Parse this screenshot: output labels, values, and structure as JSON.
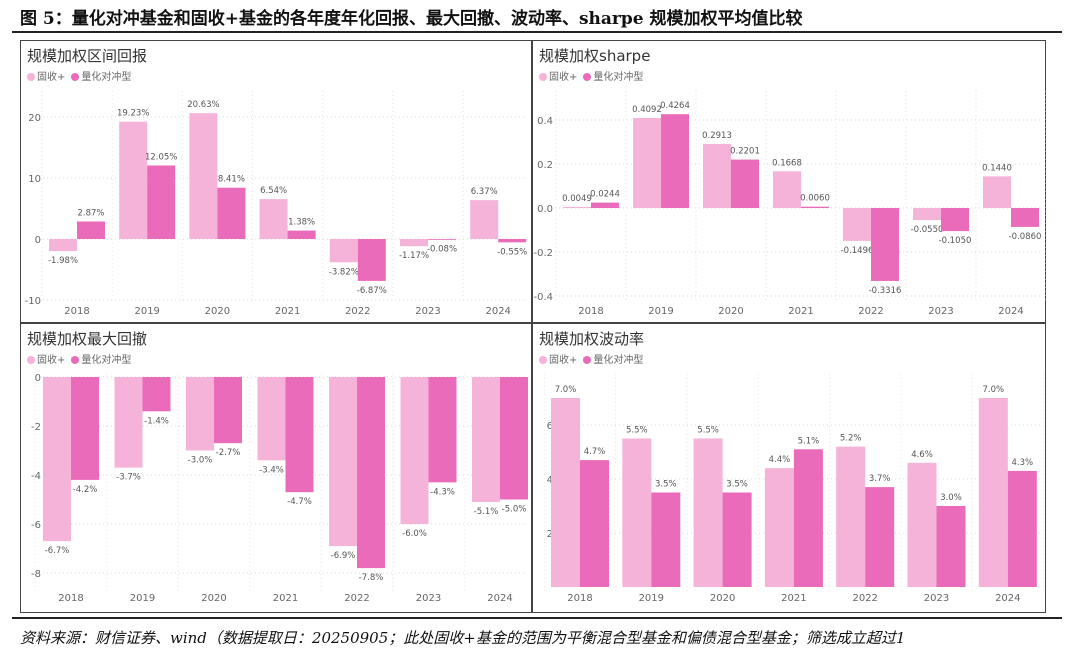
{
  "figure_title": "图 5：量化对冲基金和固收+基金的各年度年化回报、最大回撤、波动率、sharpe 规模加权平均值比较",
  "source": "资料来源：财信证券、wind（数据提取日：20250905；此处固收+基金的范围为平衡混合型基金和偏债混合型基金；筛选成立超过1",
  "colors": {
    "fixed_income_plus": "#f5b3d9",
    "quant_hedge": "#e96bb9"
  },
  "legend": [
    "固收+",
    "量化对冲型"
  ],
  "chart_data": [
    {
      "type": "bar",
      "title": "规模加权区间回报",
      "categories": [
        "2018",
        "2019",
        "2020",
        "2021",
        "2022",
        "2023",
        "2024"
      ],
      "yticks": [
        "20",
        "10",
        "0",
        "-10"
      ],
      "ytick_values": [
        20,
        10,
        0,
        -10
      ],
      "ylim": [
        -10,
        23
      ],
      "series": [
        {
          "name": "固收+",
          "values": [
            -1.98,
            19.23,
            20.63,
            6.54,
            -3.82,
            -1.17,
            6.37
          ],
          "labels": [
            "-1.98%",
            "19.23%",
            "20.63%",
            "6.54%",
            "-3.82%",
            "-1.17%",
            "6.37%"
          ]
        },
        {
          "name": "量化对冲型",
          "values": [
            2.87,
            12.05,
            8.41,
            1.38,
            -6.87,
            -0.08,
            -0.55
          ],
          "labels": [
            "2.87%",
            "12.05%",
            "8.41%",
            "1.38%",
            "-6.87%",
            "-0.08%",
            "-0.55%"
          ]
        }
      ]
    },
    {
      "type": "bar",
      "title": "规模加权sharpe",
      "categories": [
        "2018",
        "2019",
        "2020",
        "2021",
        "2022",
        "2023",
        "2024"
      ],
      "yticks": [
        "0.4",
        "0.2",
        "0.0",
        "-0.2",
        "-0.4"
      ],
      "ytick_values": [
        0.4,
        0.2,
        0,
        -0.2,
        -0.4
      ],
      "ylim": [
        -0.4,
        0.5
      ],
      "series": [
        {
          "name": "固收+",
          "values": [
            0.0049,
            0.4092,
            0.2913,
            0.1668,
            -0.1496,
            -0.055,
            0.144
          ],
          "labels": [
            "0.0049",
            "0.4092",
            "0.2913",
            "0.1668",
            "-0.1496",
            "-0.0550",
            "0.1440"
          ]
        },
        {
          "name": "量化对冲型",
          "values": [
            0.0244,
            0.4264,
            0.2201,
            0.006,
            -0.3316,
            -0.105,
            -0.086
          ],
          "labels": [
            "0.0244",
            "0.4264",
            "0.2201",
            "0.0060",
            "-0.3316",
            "-0.1050",
            "-0.0860"
          ]
        }
      ]
    },
    {
      "type": "bar",
      "title": "规模加权最大回撤",
      "categories": [
        "2018",
        "2019",
        "2020",
        "2021",
        "2022",
        "2023",
        "2024"
      ],
      "yticks": [
        "0",
        "-2",
        "-4",
        "-6",
        "-8"
      ],
      "ytick_values": [
        0,
        -2,
        -4,
        -6,
        -8
      ],
      "ylim": [
        -8.5,
        0
      ],
      "series": [
        {
          "name": "固收+",
          "values": [
            -6.7,
            -3.7,
            -3.0,
            -3.4,
            -6.9,
            -6.0,
            -5.1
          ],
          "labels": [
            "-6.7%",
            "-3.7%",
            "-3.0%",
            "-3.4%",
            "-6.9%",
            "-6.0%",
            "-5.1%"
          ]
        },
        {
          "name": "量化对冲型",
          "values": [
            -4.2,
            -1.4,
            -2.7,
            -4.7,
            -7.8,
            -4.3,
            -5.0
          ],
          "labels": [
            "-4.2%",
            "-1.4%",
            "-2.7%",
            "-4.7%",
            "-7.8%",
            "-4.3%",
            "-5.0%"
          ]
        }
      ]
    },
    {
      "type": "bar",
      "title": "规模加权波动率",
      "categories": [
        "2018",
        "2019",
        "2020",
        "2021",
        "2022",
        "2023",
        "2024"
      ],
      "yticks": [
        "6",
        "4",
        "2"
      ],
      "ytick_values": [
        6,
        4,
        2
      ],
      "ylim": [
        0,
        7.5
      ],
      "series": [
        {
          "name": "固收+",
          "values": [
            7.0,
            5.5,
            5.5,
            4.4,
            5.2,
            4.6,
            7.0
          ],
          "labels": [
            "7.0%",
            "5.5%",
            "5.5%",
            "4.4%",
            "5.2%",
            "4.6%",
            "7.0%"
          ]
        },
        {
          "name": "量化对冲型",
          "values": [
            4.7,
            3.5,
            3.5,
            5.1,
            3.7,
            3.0,
            4.3
          ],
          "labels": [
            "4.7%",
            "3.5%",
            "3.5%",
            "5.1%",
            "3.7%",
            "3.0%",
            "4.3%"
          ]
        }
      ]
    }
  ]
}
